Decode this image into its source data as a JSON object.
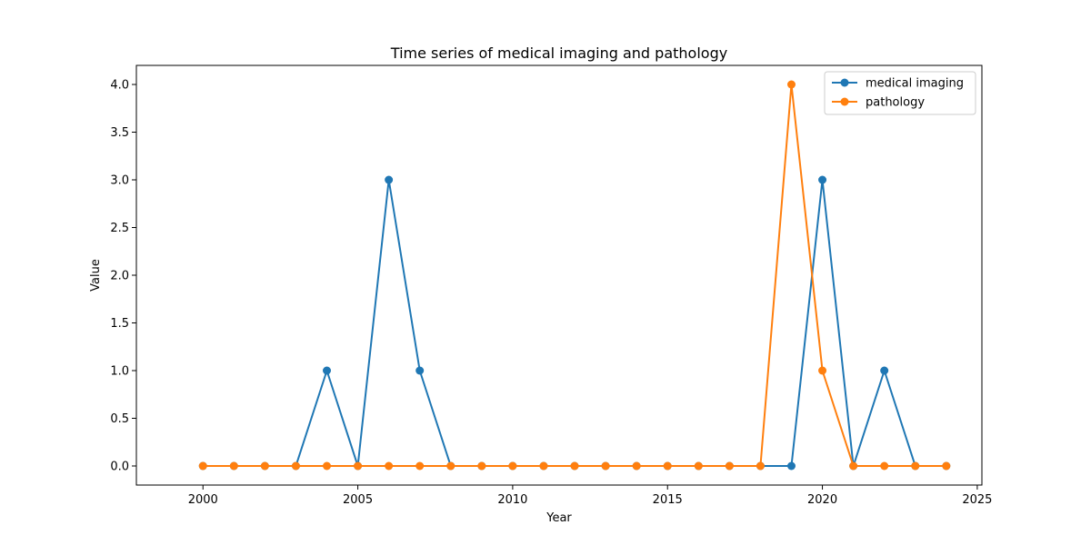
{
  "chart_data": {
    "type": "line",
    "title": "Time series of medical imaging and pathology",
    "xlabel": "Year",
    "ylabel": "Value",
    "xlim": [
      1997.85,
      2025.15
    ],
    "ylim": [
      -0.2,
      4.2
    ],
    "x": [
      2000,
      2001,
      2002,
      2003,
      2004,
      2005,
      2006,
      2007,
      2008,
      2009,
      2010,
      2011,
      2012,
      2013,
      2014,
      2015,
      2016,
      2017,
      2018,
      2019,
      2020,
      2021,
      2022,
      2023,
      2024
    ],
    "x_ticks": [
      2000,
      2005,
      2010,
      2015,
      2020,
      2025
    ],
    "x_tick_labels": [
      "2000",
      "2005",
      "2010",
      "2015",
      "2020",
      "2025"
    ],
    "y_ticks": [
      0.0,
      0.5,
      1.0,
      1.5,
      2.0,
      2.5,
      3.0,
      3.5,
      4.0
    ],
    "y_tick_labels": [
      "0.0",
      "0.5",
      "1.0",
      "1.5",
      "2.0",
      "2.5",
      "3.0",
      "3.5",
      "4.0"
    ],
    "grid": false,
    "legend_position": "top-right",
    "series": [
      {
        "name": "medical imaging",
        "color": "#1f77b4",
        "values": [
          0,
          0,
          0,
          0,
          1,
          0,
          3,
          1,
          0,
          0,
          0,
          0,
          0,
          0,
          0,
          0,
          0,
          0,
          0,
          0,
          3,
          0,
          1,
          0,
          0
        ]
      },
      {
        "name": "pathology",
        "color": "#ff7f0e",
        "values": [
          0,
          0,
          0,
          0,
          0,
          0,
          0,
          0,
          0,
          0,
          0,
          0,
          0,
          0,
          0,
          0,
          0,
          0,
          0,
          4,
          1,
          0,
          0,
          0,
          0
        ]
      }
    ]
  }
}
